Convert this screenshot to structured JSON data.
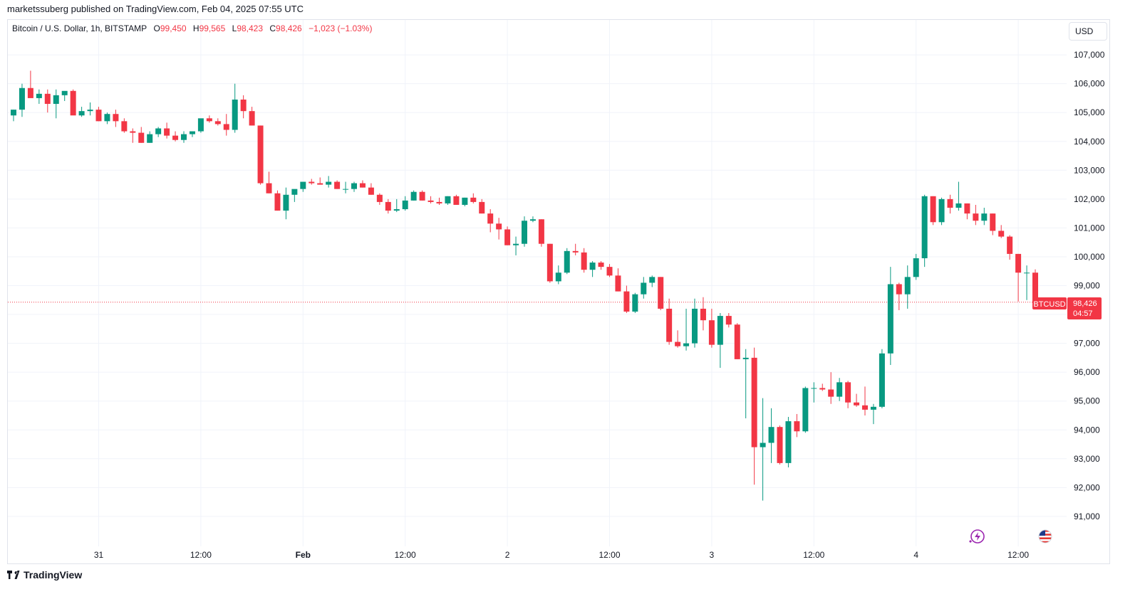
{
  "publisher": {
    "text": "marketssuberg published on TradingView.com, Feb 04, 2025 07:55 UTC"
  },
  "legend": {
    "symbol": "Bitcoin / U.S. Dollar, 1h, BITSTAMP",
    "o_label": "O",
    "o_value": "99,450",
    "h_label": "H",
    "h_value": "99,565",
    "l_label": "L",
    "l_value": "98,423",
    "c_label": "C",
    "c_value": "98,426",
    "change": "−1,023 (−1.03%)"
  },
  "currency_label": "USD",
  "price_label": {
    "symbol": "BTCUSD",
    "value": "98,426",
    "countdown": "04:57"
  },
  "footer": {
    "brand": "TradingView"
  },
  "colors": {
    "up": "#089981",
    "down": "#f23645",
    "grid": "#f0f3fa",
    "axis_text": "#131722"
  },
  "icons": [
    "flash-icon",
    "us-flag-icon",
    "tradingview-logo-icon"
  ],
  "chart_data": {
    "type": "candlestick",
    "symbol": "BTCUSD",
    "timeframe": "1h",
    "ylim": [
      90000,
      108000
    ],
    "y_ticks": [
      91000,
      92000,
      93000,
      94000,
      95000,
      96000,
      97000,
      98000,
      99000,
      100000,
      101000,
      102000,
      103000,
      104000,
      105000,
      106000,
      107000
    ],
    "y_tick_labels": [
      "91,000",
      "92,000",
      "93,000",
      "94,000",
      "95,000",
      "96,000",
      "97,000",
      "98,000",
      "99,000",
      "100,000",
      "101,000",
      "102,000",
      "103,000",
      "104,000",
      "105,000",
      "106,000",
      "107,000"
    ],
    "x_ticks": [
      {
        "bar": 10,
        "label": "31"
      },
      {
        "bar": 22,
        "label": "12:00"
      },
      {
        "bar": 34,
        "label": "Feb"
      },
      {
        "bar": 46,
        "label": "12:00"
      },
      {
        "bar": 58,
        "label": "2"
      },
      {
        "bar": 70,
        "label": "12:00"
      },
      {
        "bar": 82,
        "label": "3"
      },
      {
        "bar": 94,
        "label": "12:00"
      },
      {
        "bar": 106,
        "label": "4"
      },
      {
        "bar": 118,
        "label": "12:00"
      }
    ],
    "last_price": 98426,
    "candles": [
      [
        104900,
        105100,
        104700,
        105100
      ],
      [
        105100,
        106000,
        104850,
        105850
      ],
      [
        105850,
        106450,
        105600,
        105500
      ],
      [
        105500,
        105800,
        105300,
        105650
      ],
      [
        105650,
        105800,
        105000,
        105300
      ],
      [
        105300,
        105800,
        104800,
        105600
      ],
      [
        105600,
        105700,
        105400,
        105750
      ],
      [
        105750,
        105800,
        105000,
        104900
      ],
      [
        104900,
        105200,
        104850,
        105050
      ],
      [
        105050,
        105350,
        104900,
        105100
      ],
      [
        105100,
        105200,
        104700,
        104700
      ],
      [
        104700,
        105000,
        104600,
        104950
      ],
      [
        104950,
        105100,
        104500,
        104700
      ],
      [
        104700,
        104800,
        104300,
        104350
      ],
      [
        104350,
        104450,
        103950,
        104300
      ],
      [
        104300,
        104500,
        103950,
        103950
      ],
      [
        103950,
        104350,
        103950,
        104250
      ],
      [
        104250,
        104500,
        104150,
        104450
      ],
      [
        104450,
        104650,
        104100,
        104200
      ],
      [
        104200,
        104350,
        104000,
        104050
      ],
      [
        104050,
        104350,
        103950,
        104250
      ],
      [
        104250,
        104350,
        104150,
        104350
      ],
      [
        104350,
        104750,
        104300,
        104800
      ],
      [
        104800,
        104900,
        104650,
        104700
      ],
      [
        104700,
        104800,
        104550,
        104600
      ],
      [
        104600,
        104950,
        104200,
        104400
      ],
      [
        104400,
        106000,
        104300,
        105450
      ],
      [
        105450,
        105600,
        104800,
        105050
      ],
      [
        105050,
        105200,
        104550,
        104550
      ],
      [
        104550,
        104550,
        102500,
        102550
      ],
      [
        102550,
        102950,
        102200,
        102200
      ],
      [
        102200,
        102300,
        101600,
        101600
      ],
      [
        101600,
        102400,
        101300,
        102150
      ],
      [
        102150,
        102300,
        101900,
        102350
      ],
      [
        102350,
        102600,
        102250,
        102600
      ],
      [
        102600,
        102700,
        102500,
        102550
      ],
      [
        102550,
        102750,
        102500,
        102500
      ],
      [
        102500,
        102800,
        102400,
        102600
      ],
      [
        102600,
        102650,
        102350,
        102350
      ],
      [
        102350,
        102600,
        102200,
        102350
      ],
      [
        102350,
        102600,
        102250,
        102550
      ],
      [
        102550,
        102650,
        102400,
        102400
      ],
      [
        102400,
        102550,
        102150,
        102150
      ],
      [
        102150,
        102200,
        101800,
        101900
      ],
      [
        101900,
        102000,
        101500,
        101600
      ],
      [
        101600,
        102000,
        101550,
        101650
      ],
      [
        101650,
        102100,
        101600,
        101950
      ],
      [
        101950,
        102300,
        101950,
        102250
      ],
      [
        102250,
        102300,
        101950,
        101950
      ],
      [
        101950,
        102100,
        101850,
        101900
      ],
      [
        101900,
        102050,
        101800,
        101850
      ],
      [
        101850,
        102100,
        101800,
        102100
      ],
      [
        102100,
        102150,
        101800,
        101800
      ],
      [
        101800,
        102050,
        101750,
        102050
      ],
      [
        102050,
        102200,
        101850,
        101900
      ],
      [
        101900,
        102000,
        101500,
        101500
      ],
      [
        101500,
        101650,
        100850,
        101150
      ],
      [
        101150,
        101350,
        100600,
        100950
      ],
      [
        100950,
        101050,
        100400,
        100400
      ],
      [
        100400,
        100700,
        100050,
        100450
      ],
      [
        100450,
        101400,
        100350,
        101250
      ],
      [
        101250,
        101400,
        101200,
        101300
      ],
      [
        101300,
        101300,
        100350,
        100450
      ],
      [
        100450,
        100450,
        99100,
        99150
      ],
      [
        99150,
        99700,
        99050,
        99450
      ],
      [
        99450,
        100300,
        99400,
        100200
      ],
      [
        100200,
        100450,
        100050,
        100150
      ],
      [
        100150,
        100300,
        99450,
        99550
      ],
      [
        99550,
        99850,
        99300,
        99800
      ],
      [
        99800,
        99850,
        99550,
        99650
      ],
      [
        99650,
        99750,
        99300,
        99350
      ],
      [
        99350,
        99600,
        98800,
        98800
      ],
      [
        98800,
        99000,
        98050,
        98100
      ],
      [
        98100,
        98750,
        98050,
        98700
      ],
      [
        98700,
        99300,
        98550,
        99100
      ],
      [
        99100,
        99350,
        98950,
        99300
      ],
      [
        99300,
        99300,
        98150,
        98200
      ],
      [
        98200,
        98550,
        96950,
        97050
      ],
      [
        97050,
        97450,
        96850,
        96900
      ],
      [
        96900,
        98200,
        96750,
        97000
      ],
      [
        97000,
        98550,
        96850,
        98200
      ],
      [
        98200,
        98600,
        97450,
        97800
      ],
      [
        97800,
        98200,
        96850,
        96950
      ],
      [
        96950,
        98050,
        96150,
        97950
      ],
      [
        97950,
        98050,
        97550,
        97650
      ],
      [
        97650,
        97700,
        96450,
        96450
      ],
      [
        96450,
        96800,
        94400,
        96500
      ],
      [
        96500,
        96850,
        92100,
        93400
      ],
      [
        93400,
        95100,
        91550,
        93550
      ],
      [
        93550,
        94750,
        92850,
        94100
      ],
      [
        94100,
        94150,
        92800,
        92850
      ],
      [
        92850,
        94450,
        92700,
        94300
      ],
      [
        94300,
        94550,
        93750,
        93950
      ],
      [
        93950,
        95500,
        93900,
        95450
      ],
      [
        95450,
        95650,
        94950,
        95450
      ],
      [
        95450,
        95600,
        95350,
        95400
      ],
      [
        95400,
        96000,
        94900,
        95150
      ],
      [
        95150,
        95800,
        95000,
        95650
      ],
      [
        95650,
        95700,
        94750,
        94950
      ],
      [
        94950,
        95250,
        94800,
        94850
      ],
      [
        94850,
        95500,
        94500,
        94700
      ],
      [
        94700,
        94900,
        94200,
        94800
      ],
      [
        94800,
        96800,
        94750,
        96650
      ],
      [
        96650,
        99650,
        96250,
        99050
      ],
      [
        99050,
        99100,
        98150,
        98700
      ],
      [
        98700,
        99700,
        98200,
        99300
      ],
      [
        99300,
        100100,
        99200,
        99950
      ],
      [
        99950,
        102150,
        99650,
        102100
      ],
      [
        102100,
        102100,
        101100,
        101200
      ],
      [
        101200,
        102050,
        101100,
        102000
      ],
      [
        102000,
        102150,
        101500,
        101700
      ],
      [
        101700,
        102600,
        101600,
        101850
      ],
      [
        101850,
        101850,
        101300,
        101500
      ],
      [
        101500,
        101800,
        101100,
        101250
      ],
      [
        101250,
        101700,
        101100,
        101500
      ],
      [
        101500,
        101500,
        100750,
        100900
      ],
      [
        100900,
        101100,
        100650,
        100700
      ],
      [
        100700,
        100750,
        99900,
        100100
      ],
      [
        100100,
        100100,
        98450,
        99450
      ],
      [
        99450,
        99700,
        98500,
        99450
      ],
      [
        99450,
        99565,
        98423,
        98426
      ]
    ]
  }
}
